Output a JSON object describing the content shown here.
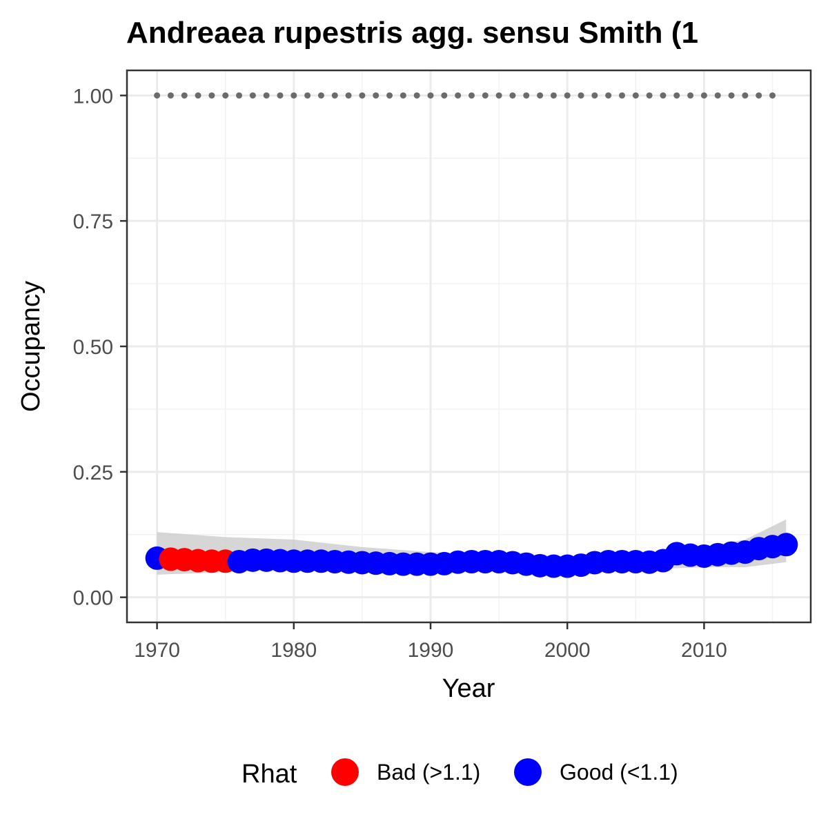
{
  "chart_data": {
    "type": "scatter",
    "title": "Andreaea rupestris agg. sensu Smith (1",
    "xlabel": "Year",
    "ylabel": "Occupancy",
    "xlim": [
      1967.8,
      2017.8
    ],
    "ylim": [
      -0.05,
      1.05
    ],
    "x_ticks": [
      1970,
      1980,
      1990,
      2000,
      2010
    ],
    "x_tick_labels": [
      "1970",
      "1980",
      "1990",
      "2000",
      "2010"
    ],
    "y_ticks": [
      0,
      0.25,
      0.5,
      0.75,
      1
    ],
    "y_tick_labels": [
      "0.00",
      "0.25",
      "0.50",
      "0.75",
      "1.00"
    ],
    "grid": true,
    "legend": {
      "title": "Rhat",
      "position": "bottom",
      "entries": [
        {
          "label": "Bad (>1.1)",
          "color": "#ff0000"
        },
        {
          "label": "Good (<1.1)",
          "color": "#0000ff"
        }
      ]
    },
    "colors": {
      "bad": "#ff0000",
      "good": "#0000ff",
      "reference": "#6b6b6b",
      "ribbon": "#c8c8c8"
    },
    "reference_series": {
      "x": [
        1970,
        1971,
        1972,
        1973,
        1974,
        1975,
        1976,
        1977,
        1978,
        1979,
        1980,
        1981,
        1982,
        1983,
        1984,
        1985,
        1986,
        1987,
        1988,
        1989,
        1990,
        1991,
        1992,
        1993,
        1994,
        1995,
        1996,
        1997,
        1998,
        1999,
        2000,
        2001,
        2002,
        2003,
        2004,
        2005,
        2006,
        2007,
        2008,
        2009,
        2010,
        2011,
        2012,
        2013,
        2014,
        2015
      ],
      "y": 1.0
    },
    "series": [
      {
        "x": [
          1970,
          1971,
          1972,
          1973,
          1974,
          1975,
          1976,
          1977,
          1978,
          1979,
          1980,
          1981,
          1982,
          1983,
          1984,
          1985,
          1986,
          1987,
          1988,
          1989,
          1990,
          1991,
          1992,
          1993,
          1994,
          1995,
          1996,
          1997,
          1998,
          1999,
          2000,
          2001,
          2002,
          2003,
          2004,
          2005,
          2006,
          2007,
          2008,
          2009,
          2010,
          2011,
          2012,
          2013,
          2014,
          2015,
          2016
        ],
        "y": [
          0.078,
          0.076,
          0.075,
          0.073,
          0.072,
          0.072,
          0.071,
          0.074,
          0.074,
          0.073,
          0.072,
          0.072,
          0.072,
          0.071,
          0.07,
          0.069,
          0.068,
          0.067,
          0.066,
          0.066,
          0.066,
          0.067,
          0.07,
          0.071,
          0.071,
          0.071,
          0.069,
          0.066,
          0.063,
          0.062,
          0.062,
          0.064,
          0.069,
          0.071,
          0.071,
          0.071,
          0.07,
          0.073,
          0.087,
          0.084,
          0.082,
          0.085,
          0.088,
          0.09,
          0.097,
          0.101,
          0.105
        ],
        "rhat": [
          "good",
          "bad",
          "bad",
          "bad",
          "bad",
          "bad",
          "good",
          "good",
          "good",
          "good",
          "good",
          "good",
          "good",
          "good",
          "good",
          "good",
          "good",
          "good",
          "good",
          "good",
          "good",
          "good",
          "good",
          "good",
          "good",
          "good",
          "good",
          "good",
          "good",
          "good",
          "good",
          "good",
          "good",
          "good",
          "good",
          "good",
          "good",
          "good",
          "good",
          "good",
          "good",
          "good",
          "good",
          "good",
          "good",
          "good",
          "good"
        ]
      }
    ],
    "ribbon": {
      "x": [
        1970,
        1975,
        1980,
        1985,
        1990,
        1995,
        2000,
        2005,
        2010,
        2013,
        2016
      ],
      "lower": [
        0.045,
        0.05,
        0.056,
        0.058,
        0.056,
        0.055,
        0.05,
        0.055,
        0.06,
        0.06,
        0.07
      ],
      "upper": [
        0.13,
        0.12,
        0.115,
        0.1,
        0.09,
        0.085,
        0.082,
        0.085,
        0.1,
        0.115,
        0.155
      ]
    }
  }
}
